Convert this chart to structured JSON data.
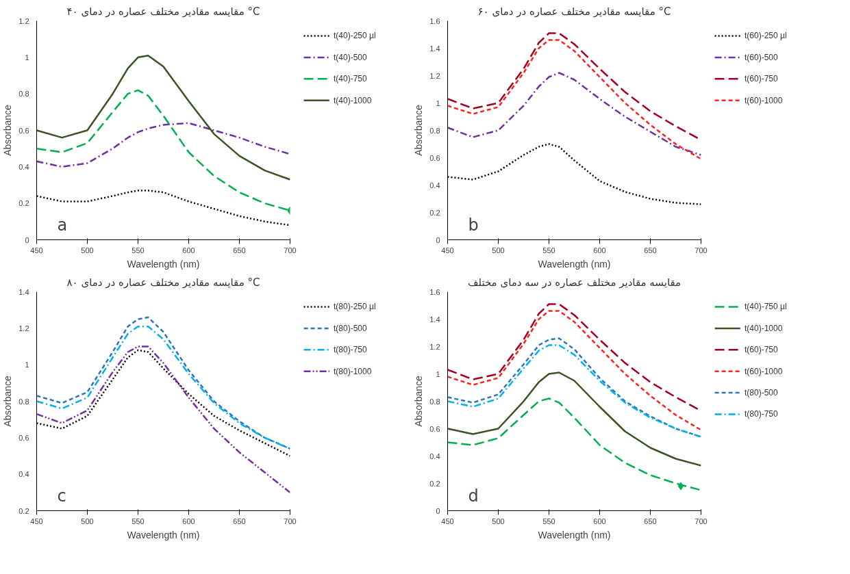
{
  "chart_data": [
    {
      "type": "line",
      "title": "مقایسه مقادیر مختلف عصاره در دمای ۴۰ °C",
      "xlabel": "Wavelength (nm)",
      "ylabel": "Absorbance",
      "xlim": [
        450,
        700
      ],
      "xticks": [
        450,
        500,
        550,
        600,
        650,
        700
      ],
      "ylim": [
        0,
        1.2
      ],
      "yticks": [
        0,
        0.2,
        0.4,
        0.6,
        0.8,
        1,
        1.2
      ],
      "legend": "right",
      "annotations": [
        "a"
      ],
      "x": [
        450,
        475,
        500,
        525,
        540,
        550,
        560,
        575,
        600,
        625,
        650,
        675,
        700
      ],
      "series": [
        {
          "name": "t(40)-250 µl",
          "color": "#000000",
          "line_style": "dotted",
          "values": [
            0.24,
            0.21,
            0.21,
            0.24,
            0.26,
            0.27,
            0.27,
            0.26,
            0.21,
            0.17,
            0.13,
            0.1,
            0.08
          ]
        },
        {
          "name": "t(40)-500",
          "color": "#7030a0",
          "line_style": "dashdot",
          "values": [
            0.43,
            0.4,
            0.42,
            0.5,
            0.56,
            0.59,
            0.61,
            0.63,
            0.64,
            0.6,
            0.56,
            0.51,
            0.47
          ]
        },
        {
          "name": "t(40)-750",
          "color": "#00b050",
          "line_style": "longdash",
          "values": [
            0.5,
            0.48,
            0.53,
            0.7,
            0.8,
            0.82,
            0.79,
            0.68,
            0.48,
            0.35,
            0.26,
            0.2,
            0.16
          ]
        },
        {
          "name": "t(40)-1000",
          "color": "#3b5323",
          "line_style": "solid",
          "values": [
            0.6,
            0.56,
            0.6,
            0.8,
            0.94,
            1.0,
            1.01,
            0.95,
            0.76,
            0.58,
            0.46,
            0.38,
            0.33
          ]
        },
        {
          "type": "scatter",
          "marker": "diamond",
          "color": "#00b050",
          "x": [
            700
          ],
          "values": [
            0.16
          ]
        }
      ]
    },
    {
      "type": "line",
      "title": "مقایسه مقادیر مختلف عصاره در دمای ۶۰ °C",
      "xlabel": "Wavelength (nm)",
      "ylabel": "Absorbance",
      "xlim": [
        450,
        700
      ],
      "xticks": [
        450,
        500,
        550,
        600,
        650,
        700
      ],
      "ylim": [
        0,
        1.6
      ],
      "yticks": [
        0,
        0.2,
        0.4,
        0.6,
        0.8,
        1,
        1.2,
        1.4,
        1.6
      ],
      "legend": "right",
      "annotations": [
        "b"
      ],
      "x": [
        450,
        475,
        500,
        525,
        540,
        550,
        560,
        575,
        600,
        625,
        650,
        675,
        700
      ],
      "series": [
        {
          "name": "t(60)-250 µl",
          "color": "#000000",
          "line_style": "dotted",
          "values": [
            0.46,
            0.44,
            0.5,
            0.62,
            0.68,
            0.7,
            0.68,
            0.58,
            0.43,
            0.35,
            0.3,
            0.27,
            0.26
          ]
        },
        {
          "name": "t(60)-500",
          "color": "#7030a0",
          "line_style": "dashdot",
          "values": [
            0.82,
            0.75,
            0.8,
            0.98,
            1.12,
            1.19,
            1.22,
            1.17,
            1.03,
            0.9,
            0.79,
            0.68,
            0.62
          ]
        },
        {
          "name": "t(60)-750",
          "color": "#a50021",
          "line_style": "longdash",
          "values": [
            1.03,
            0.96,
            1.0,
            1.25,
            1.44,
            1.51,
            1.51,
            1.43,
            1.25,
            1.08,
            0.94,
            0.83,
            0.73
          ]
        },
        {
          "name": "t(60)-1000",
          "color": "#ff2020",
          "line_style": "dashed",
          "values": [
            0.98,
            0.92,
            0.97,
            1.22,
            1.4,
            1.46,
            1.46,
            1.38,
            1.19,
            1.0,
            0.84,
            0.7,
            0.59
          ]
        }
      ]
    },
    {
      "type": "line",
      "title": "مقایسه مقادیر مختلف عصاره در دمای ۸۰ °C",
      "xlabel": "Wavelength (nm)",
      "ylabel": "Absorbance",
      "xlim": [
        450,
        700
      ],
      "xticks": [
        450,
        500,
        550,
        600,
        650,
        700
      ],
      "ylim": [
        0.2,
        1.4
      ],
      "yticks": [
        0.2,
        0.4,
        0.6,
        0.8,
        1,
        1.2,
        1.4
      ],
      "legend": "right",
      "annotations": [
        "c"
      ],
      "x": [
        450,
        475,
        500,
        525,
        540,
        550,
        560,
        575,
        600,
        625,
        650,
        675,
        700
      ],
      "series": [
        {
          "name": "t(80)-250 µl",
          "color": "#000000",
          "line_style": "dotted",
          "values": [
            0.68,
            0.65,
            0.72,
            0.92,
            1.04,
            1.08,
            1.07,
            0.98,
            0.84,
            0.72,
            0.64,
            0.57,
            0.5
          ]
        },
        {
          "name": "t(80)-500",
          "color": "#2e75b6",
          "line_style": "dashed",
          "values": [
            0.83,
            0.79,
            0.85,
            1.07,
            1.21,
            1.25,
            1.26,
            1.18,
            0.97,
            0.8,
            0.69,
            0.6,
            0.54
          ]
        },
        {
          "name": "t(80)-750",
          "color": "#00b0f0",
          "line_style": "dashdot",
          "values": [
            0.8,
            0.76,
            0.82,
            1.04,
            1.17,
            1.21,
            1.21,
            1.14,
            0.95,
            0.79,
            0.68,
            0.6,
            0.54
          ]
        },
        {
          "name": "t(80)-1000",
          "color": "#7030a0",
          "line_style": "dashdotdot",
          "values": [
            0.73,
            0.68,
            0.75,
            0.96,
            1.07,
            1.1,
            1.1,
            1.01,
            0.82,
            0.65,
            0.52,
            0.41,
            0.3
          ]
        }
      ]
    },
    {
      "type": "line",
      "title": "مقایسه مقادیر مختلف عصاره در سه دمای مختلف",
      "xlabel": "Wavelength (nm)",
      "ylabel": "Absorbance",
      "xlim": [
        450,
        700
      ],
      "xticks": [
        450,
        500,
        550,
        600,
        650,
        700
      ],
      "ylim": [
        0,
        1.6
      ],
      "yticks": [
        0,
        0.2,
        0.4,
        0.6,
        0.8,
        1,
        1.2,
        1.4,
        1.6
      ],
      "legend": "right",
      "annotations": [
        "d"
      ],
      "x": [
        450,
        475,
        500,
        525,
        540,
        550,
        560,
        575,
        600,
        625,
        650,
        675,
        700
      ],
      "series": [
        {
          "name": "t(40)-750 µl",
          "color": "#00b050",
          "line_style": "longdash",
          "values": [
            0.5,
            0.48,
            0.53,
            0.7,
            0.8,
            0.82,
            0.79,
            0.68,
            0.48,
            0.35,
            0.26,
            0.2,
            0.15
          ]
        },
        {
          "name": "t(40)-1000",
          "color": "#3b5323",
          "line_style": "solid",
          "values": [
            0.6,
            0.56,
            0.6,
            0.8,
            0.94,
            1.0,
            1.01,
            0.95,
            0.76,
            0.58,
            0.46,
            0.38,
            0.33
          ]
        },
        {
          "name": "t(60)-750",
          "color": "#a50021",
          "line_style": "longdash",
          "values": [
            1.03,
            0.96,
            1.0,
            1.25,
            1.44,
            1.51,
            1.51,
            1.43,
            1.25,
            1.08,
            0.94,
            0.83,
            0.73
          ]
        },
        {
          "name": "t(60)-1000",
          "color": "#ff2020",
          "line_style": "dashed",
          "values": [
            0.98,
            0.92,
            0.97,
            1.22,
            1.4,
            1.46,
            1.46,
            1.38,
            1.19,
            1.0,
            0.84,
            0.7,
            0.59
          ]
        },
        {
          "name": "t(80)-500",
          "color": "#2e75b6",
          "line_style": "dashed",
          "values": [
            0.83,
            0.79,
            0.85,
            1.07,
            1.21,
            1.25,
            1.26,
            1.18,
            0.97,
            0.8,
            0.69,
            0.6,
            0.54
          ]
        },
        {
          "name": "t(80)-750",
          "color": "#00b0f0",
          "line_style": "dashdot",
          "values": [
            0.8,
            0.76,
            0.82,
            1.04,
            1.17,
            1.21,
            1.21,
            1.14,
            0.95,
            0.79,
            0.68,
            0.6,
            0.54
          ]
        },
        {
          "type": "scatter",
          "marker": "diamond",
          "color": "#00b050",
          "x": [
            680
          ],
          "values": [
            0.18
          ]
        }
      ]
    }
  ]
}
